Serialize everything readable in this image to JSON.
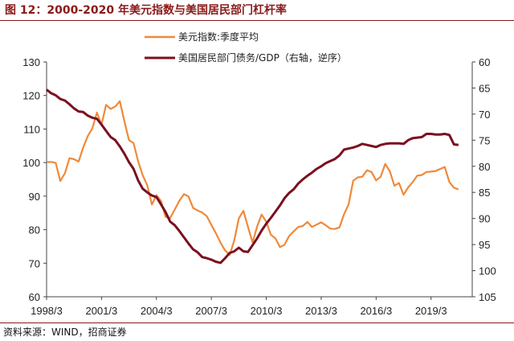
{
  "title": "图 12：2000-2020 年美元指数与美国居民部门杠杆率",
  "source": "资料来源：WIND，招商证券",
  "colors": {
    "series_a": "#f0893a",
    "series_b": "#7a1020",
    "title": "#8b1a1a"
  },
  "chart_data": {
    "type": "line",
    "legend_position": "top-center",
    "grid": false,
    "x_ticks": [
      "1998/3",
      "2001/3",
      "2004/3",
      "2007/3",
      "2010/3",
      "2013/3",
      "2016/3",
      "2019/3"
    ],
    "x_range": [
      1998.0,
      2021.25
    ],
    "y_left": {
      "ticks": [
        60,
        70,
        80,
        90,
        100,
        110,
        120,
        130
      ],
      "range": [
        60,
        130
      ]
    },
    "y_right": {
      "ticks": [
        60,
        65,
        70,
        75,
        80,
        85,
        90,
        95,
        100,
        105
      ],
      "range": [
        60,
        105
      ],
      "inverted": true
    },
    "series": [
      {
        "name": "美元指数:季度平均",
        "axis": "left",
        "color": "#f0893a",
        "x": [
          1998.0,
          1998.25,
          1998.5,
          1998.75,
          1999.0,
          1999.25,
          1999.5,
          1999.75,
          2000.0,
          2000.25,
          2000.5,
          2000.75,
          2001.0,
          2001.25,
          2001.5,
          2001.75,
          2002.0,
          2002.25,
          2002.5,
          2002.75,
          2003.0,
          2003.25,
          2003.5,
          2003.75,
          2004.0,
          2004.25,
          2004.5,
          2004.75,
          2005.0,
          2005.25,
          2005.5,
          2005.75,
          2006.0,
          2006.25,
          2006.5,
          2006.75,
          2007.0,
          2007.25,
          2007.5,
          2007.75,
          2008.0,
          2008.25,
          2008.5,
          2008.75,
          2009.0,
          2009.25,
          2009.5,
          2009.75,
          2010.0,
          2010.25,
          2010.5,
          2010.75,
          2011.0,
          2011.25,
          2011.5,
          2011.75,
          2012.0,
          2012.25,
          2012.5,
          2012.75,
          2013.0,
          2013.25,
          2013.5,
          2013.75,
          2014.0,
          2014.25,
          2014.5,
          2014.75,
          2015.0,
          2015.25,
          2015.5,
          2015.75,
          2016.0,
          2016.25,
          2016.5,
          2016.75,
          2017.0,
          2017.25,
          2017.5,
          2017.75,
          2018.0,
          2018.25,
          2018.5,
          2018.75,
          2019.0,
          2019.25,
          2019.5,
          2019.75,
          2020.0,
          2020.25,
          2020.5
        ],
        "values": [
          100.1,
          100.2,
          99.9,
          94.5,
          96.8,
          101.3,
          101.0,
          100.3,
          104.5,
          107.9,
          110.2,
          114.9,
          111.3,
          117.2,
          116.0,
          116.7,
          118.3,
          112.3,
          106.7,
          105.8,
          100.4,
          96.2,
          93.2,
          87.5,
          90.3,
          88.5,
          83.8,
          83.5,
          86.0,
          88.6,
          90.6,
          89.9,
          86.5,
          85.7,
          85.1,
          84.0,
          81.4,
          78.9,
          76.1,
          73.8,
          72.5,
          76.8,
          83.4,
          85.6,
          80.8,
          76.2,
          81.0,
          84.5,
          82.4,
          78.5,
          77.4,
          74.8,
          75.5,
          78.1,
          79.5,
          80.8,
          81.1,
          82.3,
          80.8,
          81.5,
          82.2,
          81.3,
          80.3,
          80.2,
          80.7,
          84.6,
          87.6,
          94.6,
          95.6,
          95.8,
          97.7,
          97.2,
          94.7,
          95.8,
          99.6,
          97.4,
          93.1,
          93.9,
          90.4,
          92.6,
          94.2,
          96.1,
          96.3,
          97.2,
          97.3,
          97.5,
          98.1,
          98.7,
          94.2,
          92.5,
          92.0
        ]
      },
      {
        "name": "美国居民部门债务/GDP（右轴，逆序）",
        "axis": "right",
        "color": "#7a1020",
        "x": [
          1998.0,
          1998.25,
          1998.5,
          1998.75,
          1999.0,
          1999.25,
          1999.5,
          1999.75,
          2000.0,
          2000.25,
          2000.5,
          2000.75,
          2001.0,
          2001.25,
          2001.5,
          2001.75,
          2002.0,
          2002.25,
          2002.5,
          2002.75,
          2003.0,
          2003.25,
          2003.5,
          2003.75,
          2004.0,
          2004.25,
          2004.5,
          2004.75,
          2005.0,
          2005.25,
          2005.5,
          2005.75,
          2006.0,
          2006.25,
          2006.5,
          2006.75,
          2007.0,
          2007.25,
          2007.5,
          2007.75,
          2008.0,
          2008.25,
          2008.5,
          2008.75,
          2009.0,
          2009.25,
          2009.5,
          2009.75,
          2010.0,
          2010.25,
          2010.5,
          2010.75,
          2011.0,
          2011.25,
          2011.5,
          2011.75,
          2012.0,
          2012.25,
          2012.5,
          2012.75,
          2013.0,
          2013.25,
          2013.5,
          2013.75,
          2014.0,
          2014.25,
          2014.5,
          2014.75,
          2015.0,
          2015.25,
          2015.5,
          2015.75,
          2016.0,
          2016.25,
          2016.5,
          2016.75,
          2017.0,
          2017.25,
          2017.5,
          2017.75,
          2018.0,
          2018.25,
          2018.5,
          2018.75,
          2019.0,
          2019.25,
          2019.5,
          2019.75,
          2020.0,
          2020.25,
          2020.5
        ],
        "values": [
          65.3,
          66.0,
          66.4,
          67.1,
          67.4,
          68.1,
          68.9,
          69.5,
          69.6,
          70.3,
          70.7,
          70.9,
          72.0,
          73.2,
          74.4,
          75.0,
          76.2,
          77.6,
          79.2,
          80.5,
          82.7,
          84.3,
          85.0,
          85.6,
          85.9,
          87.3,
          88.8,
          90.6,
          91.3,
          92.4,
          93.6,
          94.8,
          95.9,
          96.5,
          97.4,
          97.6,
          97.9,
          98.3,
          98.5,
          97.6,
          96.6,
          96.3,
          95.6,
          96.3,
          96.4,
          95.1,
          93.8,
          92.3,
          91.0,
          89.9,
          88.7,
          87.5,
          86.1,
          85.1,
          84.4,
          83.3,
          82.5,
          81.8,
          81.2,
          80.5,
          80.0,
          79.4,
          79.0,
          78.6,
          77.9,
          76.8,
          76.6,
          76.4,
          76.1,
          75.7,
          75.9,
          76.1,
          76.3,
          75.9,
          75.7,
          75.6,
          75.6,
          75.6,
          75.7,
          75.0,
          74.6,
          74.5,
          74.4,
          73.8,
          73.8,
          73.9,
          73.9,
          73.8,
          74.0,
          75.8,
          75.9
        ]
      }
    ]
  }
}
